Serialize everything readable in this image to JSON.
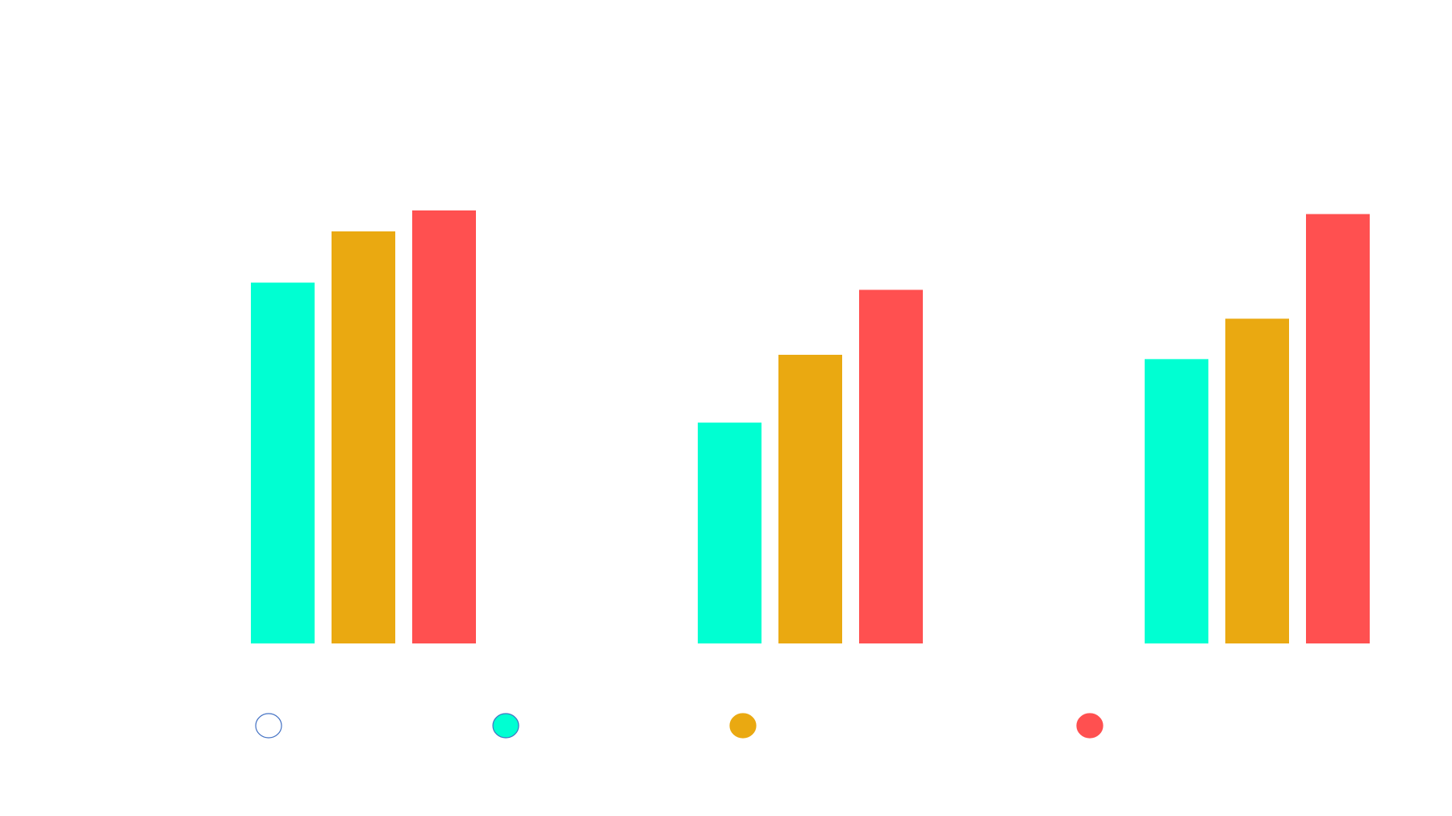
{
  "chart_data": {
    "type": "bar",
    "title": "",
    "xlabel": "",
    "ylabel": "",
    "categories": [
      "",
      "",
      ""
    ],
    "series": [
      {
        "color": "#00ffd2",
        "values": [
          5.0,
          3.06,
          3.94
        ]
      },
      {
        "color": "#eaa911",
        "values": [
          5.71,
          4.0,
          4.5
        ]
      },
      {
        "color": "#ff5050",
        "values": [
          6.0,
          4.9,
          5.95
        ]
      }
    ],
    "ylim": [
      0,
      6.0
    ],
    "grid": false,
    "legend": {
      "placement": "bottom",
      "markers": [
        {
          "color": "#ffffff",
          "outline": "#4472c4"
        },
        {
          "color": "#00ffd2",
          "outline": "#4472c4"
        },
        {
          "color": "#eaa911",
          "outline": "#eaa911"
        },
        {
          "color": "#ff5050",
          "outline": "#ff5050"
        }
      ]
    }
  }
}
